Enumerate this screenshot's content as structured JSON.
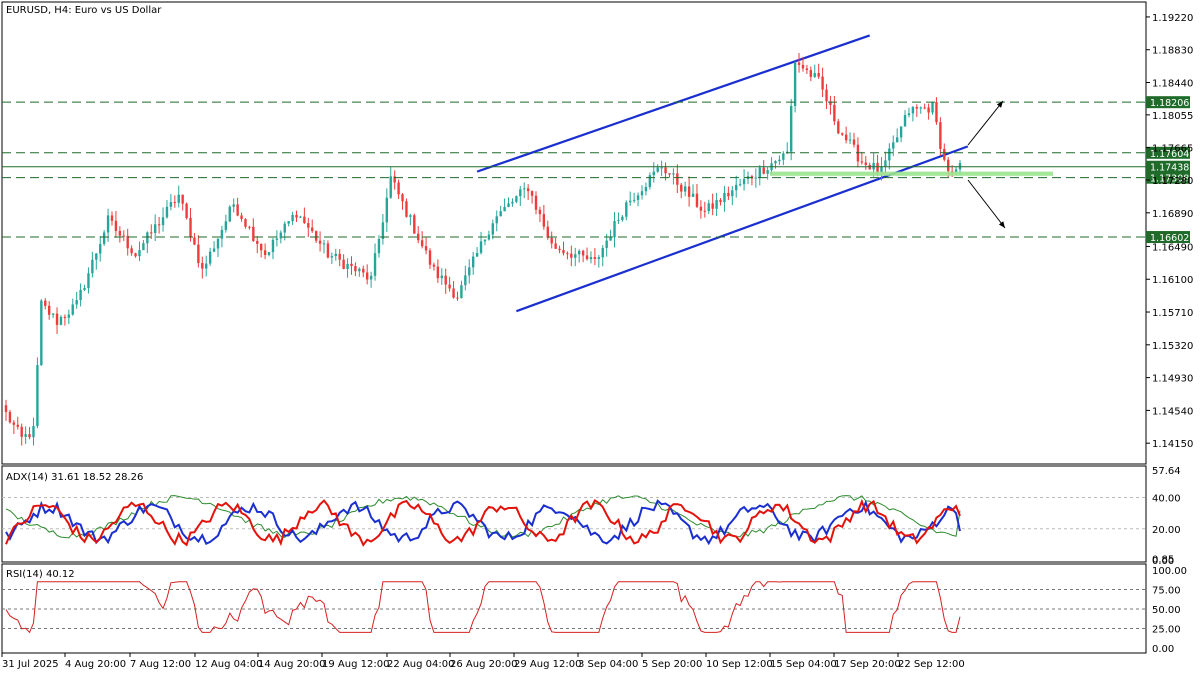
{
  "window": {
    "title": "EURUSD, H4:  Euro vs US Dollar"
  },
  "colors": {
    "bull": "#26a69a",
    "bear": "#ef3b3b",
    "channel": "#1a2fd0",
    "levels": "#1f6b2a",
    "highlight": "#9be48f",
    "adx_plus": "#1a2fd0",
    "adx_minus": "#e3120b",
    "adx_main": "#2e8b2e",
    "rsi": "#d62020"
  },
  "main": {
    "price_ticks": [
      "1.19220",
      "1.18830",
      "1.18440",
      "1.18055",
      "1.17665",
      "1.17280",
      "1.16890",
      "1.16490",
      "1.16100",
      "1.15710",
      "1.15320",
      "1.14930",
      "1.14540",
      "1.14150"
    ],
    "level_labels": [
      "1.18206",
      "1.17604",
      "1.17438",
      "1.17308",
      "1.16602"
    ],
    "arrows": [
      "up-right-arrow",
      "down-right-arrow"
    ]
  },
  "adx": {
    "label": "ADX(14) 31.61 18.52 28.26",
    "ticks": [
      "57.64",
      "40.00",
      "20.00",
      "0.85",
      "0.00"
    ]
  },
  "rsi": {
    "label": "RSI(14) 40.12",
    "ticks": [
      "100.00",
      "75.00",
      "50.00",
      "25.00",
      "0.00"
    ]
  },
  "time_axis": [
    "31 Jul 2025",
    "4 Aug 20:00",
    "7 Aug 12:00",
    "12 Aug 04:00",
    "14 Aug 20:00",
    "19 Aug 12:00",
    "22 Aug 04:00",
    "26 Aug 20:00",
    "29 Aug 12:00",
    "3 Sep 04:00",
    "5 Sep 20:00",
    "10 Sep 12:00",
    "15 Sep 04:00",
    "17 Sep 20:00",
    "22 Sep 12:00"
  ],
  "chart_data": {
    "type": "candlestick",
    "symbol": "EURUSD",
    "timeframe": "H4",
    "ylim": [
      1.1395,
      1.1935
    ],
    "anchors": [
      [
        0,
        1.145
      ],
      [
        4,
        1.142
      ],
      [
        7,
        1.143
      ],
      [
        9,
        1.158
      ],
      [
        13,
        1.156
      ],
      [
        18,
        1.158
      ],
      [
        26,
        1.168
      ],
      [
        33,
        1.164
      ],
      [
        44,
        1.171
      ],
      [
        50,
        1.162
      ],
      [
        58,
        1.17
      ],
      [
        66,
        1.164
      ],
      [
        74,
        1.169
      ],
      [
        82,
        1.164
      ],
      [
        93,
        1.161
      ],
      [
        98,
        1.173
      ],
      [
        109,
        1.162
      ],
      [
        115,
        1.159
      ],
      [
        124,
        1.168
      ],
      [
        133,
        1.172
      ],
      [
        139,
        1.165
      ],
      [
        150,
        1.163
      ],
      [
        158,
        1.17
      ],
      [
        167,
        1.1745
      ],
      [
        178,
        1.169
      ],
      [
        189,
        1.173
      ],
      [
        199,
        1.176
      ],
      [
        201,
        1.187
      ],
      [
        207,
        1.1845
      ],
      [
        212,
        1.179
      ],
      [
        218,
        1.175
      ],
      [
        223,
        1.1738
      ],
      [
        230,
        1.181
      ],
      [
        236,
        1.1815
      ],
      [
        239,
        1.175
      ],
      [
        241,
        1.1733
      ],
      [
        243,
        1.1742
      ]
    ],
    "count": 244,
    "levels": [
      1.18206,
      1.17604,
      1.17438,
      1.17308,
      1.16602
    ],
    "channel_upper": [
      [
        120,
        1.1738
      ],
      [
        220,
        1.19
      ]
    ],
    "channel_lower": [
      [
        130,
        1.1572
      ],
      [
        245,
        1.1768
      ]
    ],
    "adx": {
      "ylim": [
        0,
        57.64
      ],
      "levels": [
        40,
        20
      ],
      "main_last": 31.61,
      "plus_di_last": 18.52,
      "minus_di_last": 28.26
    },
    "rsi": {
      "ylim": [
        0,
        100
      ],
      "levels": [
        75,
        50,
        25
      ],
      "last": 40.12
    }
  }
}
